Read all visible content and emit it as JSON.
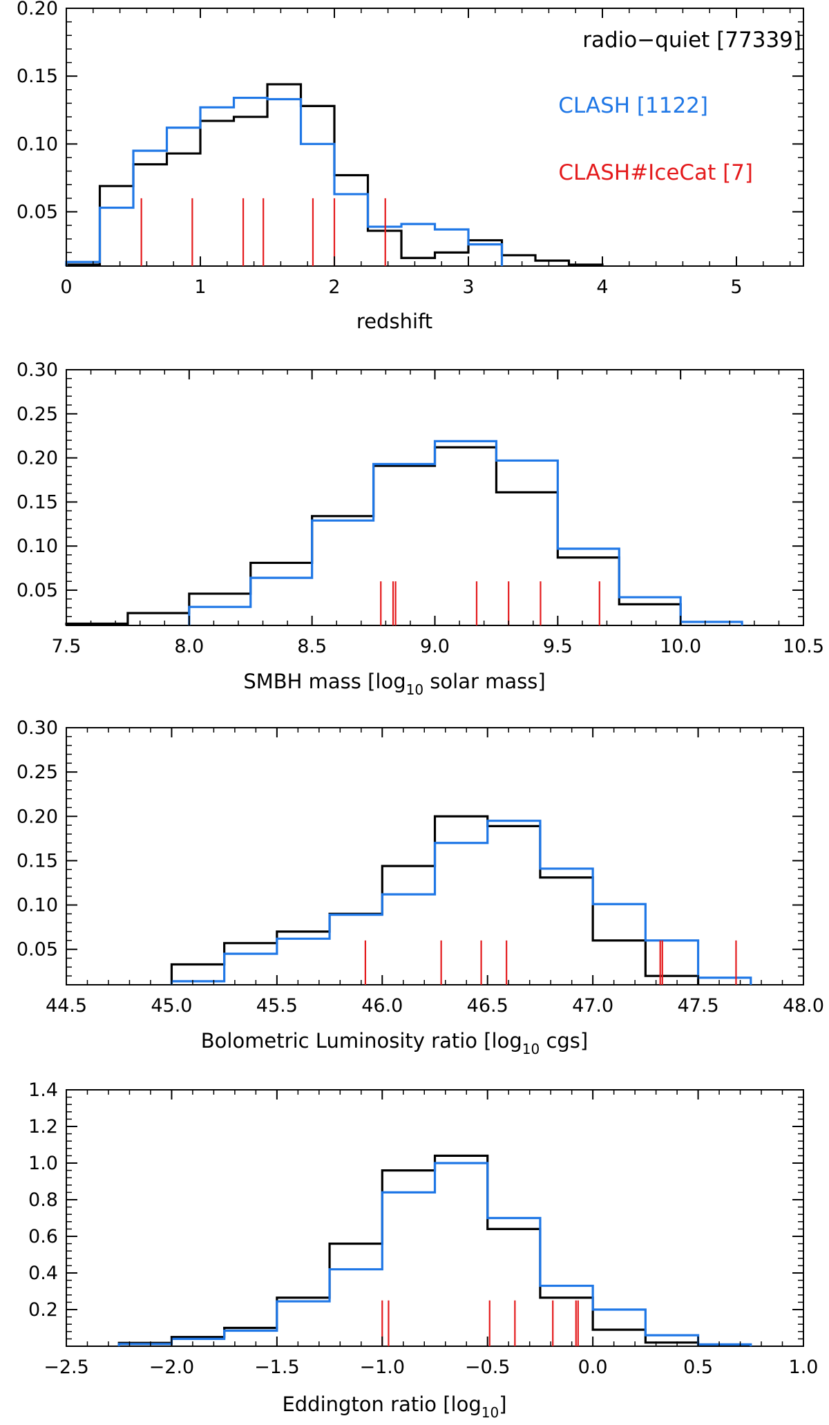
{
  "colors": {
    "radio_quiet": "#000000",
    "clash": "#1f77e6",
    "icecat": "#e41a1c",
    "axes": "#000000"
  },
  "legend": {
    "radio_quiet": "radio−quiet [77339]",
    "clash": "CLASH [1122]",
    "icecat": "CLASH#IceCat [7]"
  },
  "chart_data": [
    {
      "type": "histogram",
      "xlabel": "redshift",
      "xlim": [
        0,
        5.5
      ],
      "ylim": [
        0.01,
        0.2
      ],
      "xticks": [
        0,
        1,
        2,
        3,
        4,
        5
      ],
      "xtick_labels": [
        "0",
        "1",
        "2",
        "3",
        "4",
        "5"
      ],
      "yticks": [
        0.05,
        0.1,
        0.15,
        0.2
      ],
      "ytick_labels": [
        "0.05",
        "0.10",
        "0.15",
        "0.20"
      ],
      "series": [
        {
          "name": "radio-quiet",
          "edges": [
            0,
            0.25,
            0.5,
            0.75,
            1.0,
            1.25,
            1.5,
            1.75,
            2.0,
            2.25,
            2.5,
            2.75,
            3.0,
            3.25,
            3.5,
            3.75,
            4.0
          ],
          "values": [
            0.011,
            0.069,
            0.085,
            0.093,
            0.117,
            0.12,
            0.144,
            0.128,
            0.077,
            0.036,
            0.016,
            0.02,
            0.029,
            0.018,
            0.014,
            0.011
          ]
        },
        {
          "name": "CLASH",
          "edges": [
            0,
            0.25,
            0.5,
            0.75,
            1.0,
            1.25,
            1.5,
            1.75,
            2.0,
            2.25,
            2.5,
            2.75,
            3.0,
            3.25
          ],
          "values": [
            0.013,
            0.053,
            0.095,
            0.112,
            0.127,
            0.134,
            0.133,
            0.1,
            0.063,
            0.039,
            0.041,
            0.037,
            0.026
          ]
        }
      ],
      "icecat_markers": [
        0.56,
        0.94,
        1.32,
        1.47,
        1.84,
        2.0,
        2.38
      ],
      "marker_height": 0.05
    },
    {
      "type": "histogram",
      "xlabel_main": "SMBH mass [log",
      "xlabel_sub": "10",
      "xlabel_tail": " solar mass]",
      "xlim": [
        7.5,
        10.5
      ],
      "ylim": [
        0.01,
        0.3
      ],
      "xticks": [
        7.5,
        8.0,
        8.5,
        9.0,
        9.5,
        10.0,
        10.5
      ],
      "xtick_labels": [
        "7.5",
        "8.0",
        "8.5",
        "9.0",
        "9.5",
        "10.0",
        "10.5"
      ],
      "yticks": [
        0.05,
        0.1,
        0.15,
        0.2,
        0.25,
        0.3
      ],
      "ytick_labels": [
        "0.05",
        "0.10",
        "0.15",
        "0.20",
        "0.25",
        "0.30"
      ],
      "series": [
        {
          "name": "radio-quiet",
          "edges": [
            7.5,
            7.75,
            8.0,
            8.25,
            8.5,
            8.75,
            9.0,
            9.25,
            9.5,
            9.75,
            10.0
          ],
          "values": [
            0.012,
            0.024,
            0.046,
            0.081,
            0.134,
            0.191,
            0.212,
            0.161,
            0.087,
            0.034
          ]
        },
        {
          "name": "CLASH",
          "edges": [
            8.0,
            8.25,
            8.5,
            8.75,
            9.0,
            9.25,
            9.5,
            9.75,
            10.0,
            10.25
          ],
          "values": [
            0.031,
            0.064,
            0.129,
            0.193,
            0.219,
            0.197,
            0.097,
            0.042,
            0.014
          ]
        }
      ],
      "icecat_markers": [
        8.78,
        8.83,
        8.84,
        9.17,
        9.3,
        9.43,
        9.67
      ],
      "marker_height": 0.05
    },
    {
      "type": "histogram",
      "xlabel_main": "Bolometric Luminosity ratio [log",
      "xlabel_sub": "10",
      "xlabel_tail": " cgs]",
      "xlim": [
        44.5,
        48.0
      ],
      "ylim": [
        0.01,
        0.3
      ],
      "xticks": [
        44.5,
        45.0,
        45.5,
        46.0,
        46.5,
        47.0,
        47.5,
        48.0
      ],
      "xtick_labels": [
        "44.5",
        "45.0",
        "45.5",
        "46.0",
        "46.5",
        "47.0",
        "47.5",
        "48.0"
      ],
      "yticks": [
        0.05,
        0.1,
        0.15,
        0.2,
        0.25,
        0.3
      ],
      "ytick_labels": [
        "0.05",
        "0.10",
        "0.15",
        "0.20",
        "0.25",
        "0.30"
      ],
      "series": [
        {
          "name": "radio-quiet",
          "edges": [
            45.0,
            45.25,
            45.5,
            45.75,
            46.0,
            46.25,
            46.5,
            46.75,
            47.0,
            47.25,
            47.5
          ],
          "values": [
            0.033,
            0.057,
            0.07,
            0.09,
            0.144,
            0.2,
            0.189,
            0.131,
            0.06,
            0.02
          ]
        },
        {
          "name": "CLASH",
          "edges": [
            45.0,
            45.25,
            45.5,
            45.75,
            46.0,
            46.25,
            46.5,
            46.75,
            47.0,
            47.25,
            47.5,
            47.75
          ],
          "values": [
            0.014,
            0.045,
            0.062,
            0.089,
            0.112,
            0.17,
            0.195,
            0.141,
            0.101,
            0.06,
            0.018
          ]
        }
      ],
      "icecat_markers": [
        45.92,
        46.28,
        46.47,
        46.59,
        47.32,
        47.33,
        47.68
      ],
      "marker_height": 0.05
    },
    {
      "type": "histogram",
      "xlabel_main": "Eddington ratio [log",
      "xlabel_sub": "10",
      "xlabel_tail": "]",
      "xlim": [
        -2.5,
        1.0
      ],
      "ylim": [
        0.0,
        1.4
      ],
      "xticks": [
        -2.5,
        -2.0,
        -1.5,
        -1.0,
        -0.5,
        0.0,
        0.5,
        1.0
      ],
      "xtick_labels": [
        "−2.5",
        "−2.0",
        "−1.5",
        "−1.0",
        "−0.5",
        "0.0",
        "0.5",
        "1.0"
      ],
      "yticks": [
        0.2,
        0.4,
        0.6,
        0.8,
        1.0,
        1.2,
        1.4
      ],
      "ytick_labels": [
        "0.2",
        "0.4",
        "0.6",
        "0.8",
        "1.0",
        "1.2",
        "1.4"
      ],
      "series": [
        {
          "name": "radio-quiet",
          "edges": [
            -2.25,
            -2.0,
            -1.75,
            -1.5,
            -1.25,
            -1.0,
            -0.75,
            -0.5,
            -0.25,
            0.0,
            0.25,
            0.5
          ],
          "values": [
            0.018,
            0.05,
            0.1,
            0.265,
            0.56,
            0.96,
            1.04,
            0.64,
            0.265,
            0.09,
            0.02
          ]
        },
        {
          "name": "CLASH",
          "edges": [
            -2.25,
            -2.0,
            -1.75,
            -1.5,
            -1.25,
            -1.0,
            -0.75,
            -0.5,
            -0.25,
            0.0,
            0.25,
            0.5,
            0.75
          ],
          "values": [
            0.012,
            0.04,
            0.085,
            0.245,
            0.42,
            0.84,
            1.0,
            0.7,
            0.33,
            0.2,
            0.06,
            0.01
          ]
        }
      ],
      "icecat_markers": [
        -1.0,
        -0.97,
        -0.49,
        -0.37,
        -0.19,
        -0.08,
        -0.07
      ],
      "marker_height": 0.25
    }
  ]
}
